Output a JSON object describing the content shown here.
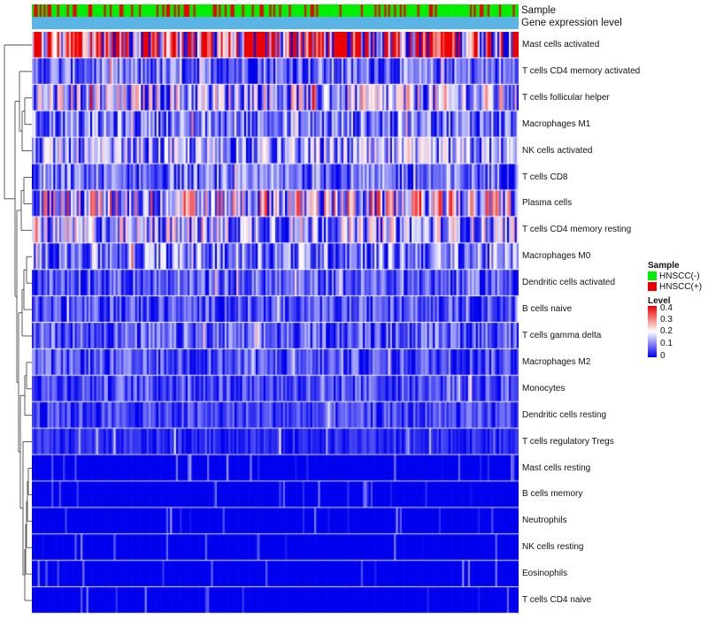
{
  "chart_data": {
    "type": "heatmap",
    "annotation_tracks": [
      "Sample",
      "Gene expression level"
    ],
    "rows": [
      "Mast cells activated",
      "T cells CD4 memory activated",
      "T cells follicular helper",
      "Macrophages M1",
      "NK cells activated",
      "T cells CD8",
      "Plasma cells",
      "T cells CD4 memory resting",
      "Macrophages M0",
      "Dendritic cells activated",
      "B cells naive",
      "T cells gamma delta",
      "Macrophages M2",
      "Monocytes",
      "Dendritic cells resting",
      "T cells regulatory  Tregs",
      "Mast cells resting",
      "B cells memory",
      "Neutrophils",
      "NK cells resting",
      "Eosinophils",
      "T cells CD4 naive"
    ],
    "row_mean_level": [
      0.3,
      0.08,
      0.14,
      0.09,
      0.11,
      0.08,
      0.17,
      0.13,
      0.1,
      0.07,
      0.06,
      0.07,
      0.06,
      0.06,
      0.05,
      0.03,
      0.01,
      0.01,
      0.02,
      0.01,
      0.005,
      0.01
    ],
    "sample_groups": [
      {
        "name": "HNSCC(-)",
        "color": "#00ee00"
      },
      {
        "name": "HNSCC(+)",
        "color": "#ee0000"
      }
    ],
    "n_samples": 250,
    "gene_expression_level_color": "#5ab4e5",
    "color_scale": {
      "title": "Level",
      "ticks": [
        "0.4",
        "0.3",
        "0.2",
        "0.1",
        "0"
      ],
      "range": [
        0,
        0.4
      ],
      "colors": [
        "#0000ee",
        "#ffffff",
        "#ee0000"
      ]
    }
  }
}
